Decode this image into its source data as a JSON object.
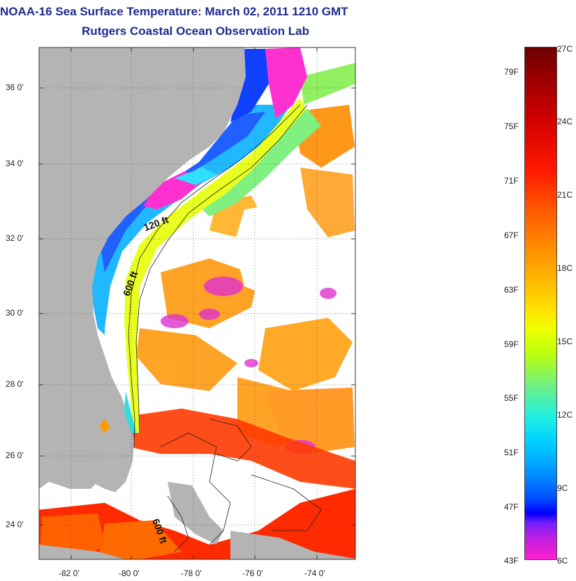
{
  "title": "NOAA-16 Sea Surface Temperature:  March 02, 2011 1210 GMT",
  "subtitle": "Rutgers Coastal Ocean Observation Lab",
  "map": {
    "lat_labels": [
      "36 0'",
      "34 0'",
      "32 0'",
      "30 0'",
      "28 0'",
      "26 0'",
      "24 0'"
    ],
    "lon_labels": [
      "-82 0'",
      "-80 0'",
      "-78 0'",
      "-76 0'",
      "-74 0'"
    ],
    "contour_labels": [
      "120 ft",
      "600 ft",
      "600 ft"
    ]
  },
  "colorbar": {
    "fahrenheit_labels": [
      "79F",
      "75F",
      "71F",
      "67F",
      "63F",
      "59F",
      "55F",
      "51F",
      "47F",
      "43F"
    ],
    "celsius_labels": [
      "27C",
      "24C",
      "21C",
      "18C",
      "15C",
      "12C",
      "9C",
      "6C"
    ]
  },
  "colors": {
    "title": "#1f2b8f",
    "land": "#b4b4b4",
    "cloud": "#ffffff"
  }
}
